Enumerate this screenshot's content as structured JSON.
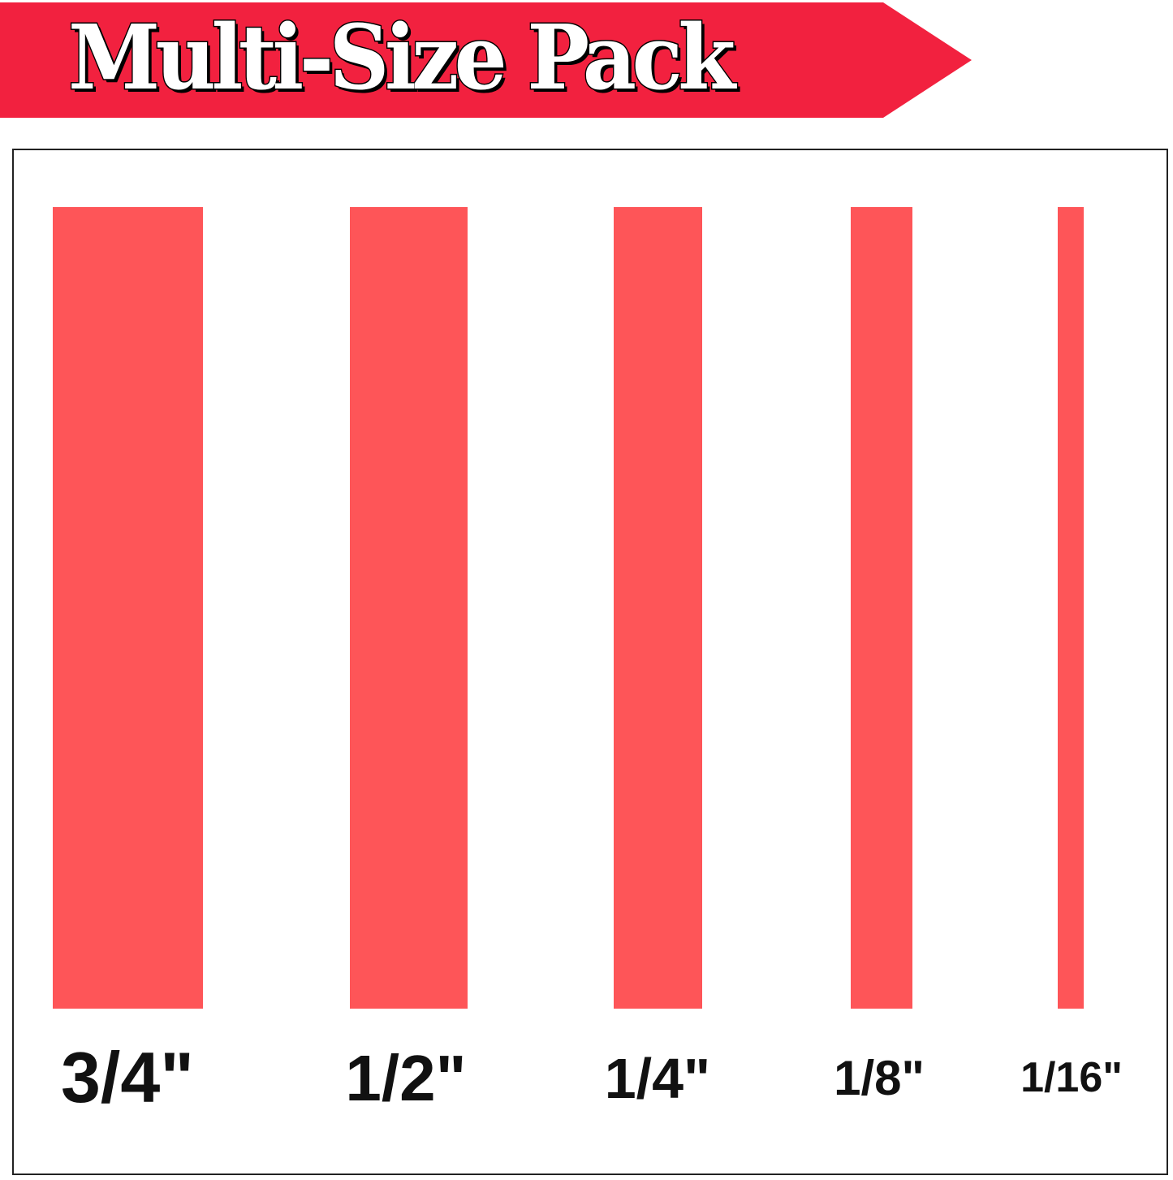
{
  "banner": {
    "title": "Multi-Size Pack",
    "color": "#f2213f"
  },
  "strip_color": "#fe5558",
  "sizes": [
    {
      "label": "3/4\"",
      "inches": 0.75
    },
    {
      "label": "1/2\"",
      "inches": 0.5
    },
    {
      "label": "1/4\"",
      "inches": 0.25
    },
    {
      "label": "1/8\"",
      "inches": 0.125
    },
    {
      "label": "1/16\"",
      "inches": 0.0625
    }
  ]
}
